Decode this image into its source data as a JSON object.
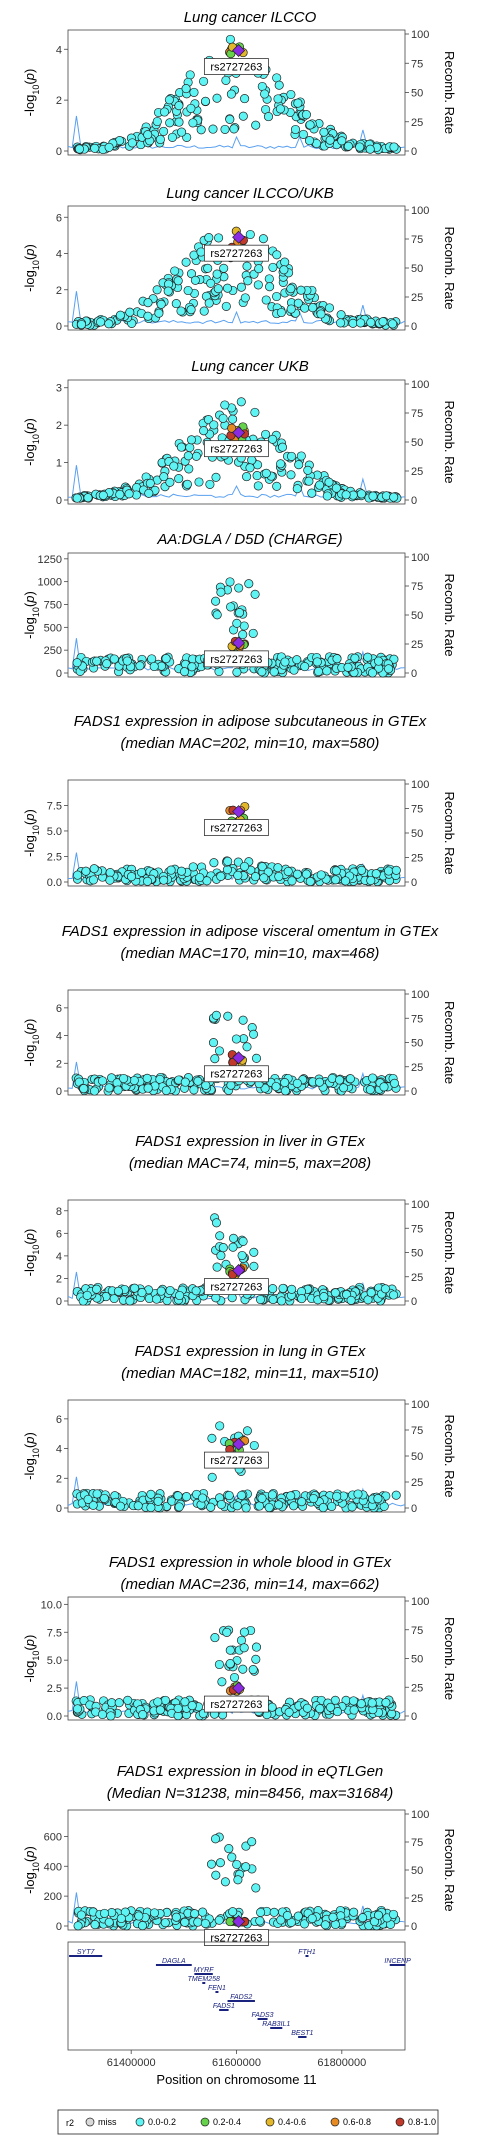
{
  "chart_data": {
    "type": "scatter",
    "lead_snp": "rs2727263",
    "right_axis_label": "Recomb. Rate",
    "right_axis_ticks": [
      0,
      25,
      50,
      75,
      100
    ],
    "x_axis": {
      "label": "Position on chromosome 11",
      "ticks": [
        "61400000",
        "61600000",
        "61800000"
      ],
      "range": [
        61280000,
        61920000
      ]
    },
    "lead_position": 61596000,
    "panels": [
      {
        "title_lines": [
          "Lung cancer ILCCO"
        ],
        "y_ticks": [
          "0",
          "2",
          "4"
        ],
        "ylim": [
          0,
          4.6
        ],
        "peak": 4.3,
        "peak_shape": "broad",
        "lead_value": 3.95
      },
      {
        "title_lines": [
          "Lung cancer ILCCO/UKB"
        ],
        "y_ticks": [
          "0",
          "2",
          "4",
          "6"
        ],
        "ylim": [
          0,
          6.4
        ],
        "peak": 5.6,
        "peak_shape": "broad",
        "lead_value": 4.9
      },
      {
        "title_lines": [
          "Lung cancer UKB"
        ],
        "y_ticks": [
          "0",
          "1",
          "2",
          "3"
        ],
        "ylim": [
          0,
          3.1
        ],
        "peak": 2.6,
        "peak_shape": "broad",
        "lead_value": 1.8
      },
      {
        "title_lines": [
          "AA:DGLA / D5D (CHARGE)"
        ],
        "y_ticks": [
          "0",
          "250",
          "500",
          "750",
          "1000",
          "1250"
        ],
        "ylim": [
          0,
          1270
        ],
        "peak": 1000,
        "peak_shape": "tower",
        "lead_value": 330
      },
      {
        "title_lines": [
          "FADS1 expression in adipose subcutaneous in GTEx",
          "(median MAC=202, min=10, max=580)"
        ],
        "y_ticks": [
          "0.0",
          "2.5",
          "5.0",
          "7.5"
        ],
        "ylim": [
          0,
          9.6
        ],
        "peak": 8.0,
        "peak_shape": "narrow",
        "lead_value": 6.9
      },
      {
        "title_lines": [
          "FADS1 expression in adipose visceral omentum in GTEx",
          "(median MAC=170, min=10, max=468)"
        ],
        "y_ticks": [
          "0",
          "2",
          "4",
          "6"
        ],
        "ylim": [
          0,
          7.0
        ],
        "peak": 5.5,
        "peak_shape": "tower",
        "lead_value": 2.4
      },
      {
        "title_lines": [
          "FADS1 expression in liver in GTEx",
          "(median MAC=74, min=5, max=208)"
        ],
        "y_ticks": [
          "0",
          "2",
          "4",
          "6",
          "8"
        ],
        "ylim": [
          0,
          8.6
        ],
        "peak": 7.5,
        "peak_shape": "tower",
        "lead_value": 2.7
      },
      {
        "title_lines": [
          "FADS1 expression in lung in GTEx",
          "(median MAC=182, min=11, max=510)"
        ],
        "y_ticks": [
          "0",
          "2",
          "4",
          "6"
        ],
        "ylim": [
          0,
          7.0
        ],
        "peak": 5.6,
        "peak_shape": "tower",
        "lead_value": 4.3
      },
      {
        "title_lines": [
          "FADS1 expression in whole blood in GTEx",
          "(median MAC=236, min=14, max=662)"
        ],
        "y_ticks": [
          "0.0",
          "2.5",
          "5.0",
          "7.5",
          "10.0"
        ],
        "ylim": [
          0,
          10.3
        ],
        "peak": 8.0,
        "peak_shape": "tower",
        "lead_value": 2.5
      },
      {
        "title_lines": [
          "FADS1 expression in blood in eQTLGen",
          "(Median N=31238, min=8456, max=31684)"
        ],
        "y_ticks": [
          "0",
          "200",
          "400",
          "600"
        ],
        "ylim": [
          0,
          750
        ],
        "peak": 600,
        "peak_shape": "tower",
        "lead_value": 30
      }
    ],
    "genes": [
      {
        "name": "SYT7",
        "start": 61282000,
        "end": 61345000,
        "row": 0
      },
      {
        "name": "DAGLA",
        "start": 61447000,
        "end": 61515000,
        "row": 1
      },
      {
        "name": "MYRF",
        "start": 61520000,
        "end": 61555000,
        "row": 2
      },
      {
        "name": "TMEM258",
        "start": 61535000,
        "end": 61537000,
        "row": 3
      },
      {
        "name": "FEN1",
        "start": 61560000,
        "end": 61564000,
        "row": 4
      },
      {
        "name": "FADS2",
        "start": 61583000,
        "end": 61635000,
        "row": 5
      },
      {
        "name": "FADS1",
        "start": 61567000,
        "end": 61585000,
        "row": 6
      },
      {
        "name": "FADS3",
        "start": 61640000,
        "end": 61659000,
        "row": 7
      },
      {
        "name": "RAB3IL1",
        "start": 61664000,
        "end": 61687000,
        "row": 8
      },
      {
        "name": "BEST1",
        "start": 61717000,
        "end": 61733000,
        "row": 9
      },
      {
        "name": "FTH1",
        "start": 61731000,
        "end": 61735000,
        "row": 0
      },
      {
        "name": "INCENP",
        "start": 61891000,
        "end": 61921000,
        "row": 1
      }
    ],
    "legend": {
      "title": "r2",
      "items": [
        {
          "label": "miss",
          "color": "#d9d9d9"
        },
        {
          "label": "0.0-0.2",
          "color": "#5ff4f4"
        },
        {
          "label": "0.2-0.4",
          "color": "#66d14a"
        },
        {
          "label": "0.4-0.6",
          "color": "#e2b72a"
        },
        {
          "label": "0.6-0.8",
          "color": "#e68a24"
        },
        {
          "label": "0.8-1.0",
          "color": "#c0392b"
        }
      ]
    },
    "colors": {
      "point_fill": "#5ff4f4",
      "point_stroke": "#222222",
      "lead_fill": "#8a2be2",
      "recomb_line": "#5aa0f0",
      "axis": "#444444"
    }
  }
}
